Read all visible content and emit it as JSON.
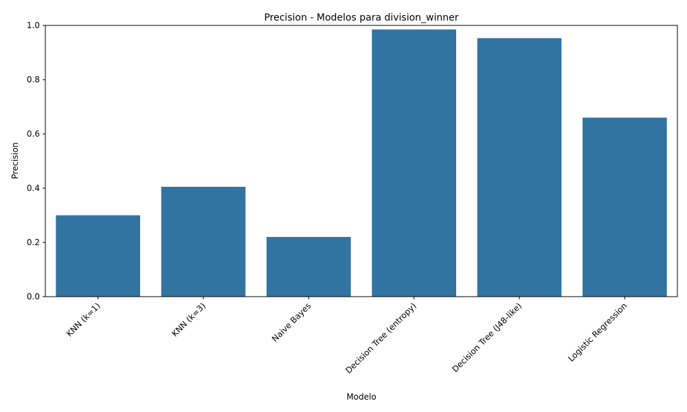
{
  "chart_data": {
    "type": "bar",
    "title": "Precision - Modelos para division_winner",
    "xlabel": "Modelo",
    "ylabel": "Precision",
    "categories": [
      "KNN (k=1)",
      "KNN (k=3)",
      "Naive Bayes",
      "Decision Tree (entropy)",
      "Decision Tree (J48-like)",
      "Logistic Regression"
    ],
    "values": [
      0.3,
      0.405,
      0.22,
      0.985,
      0.953,
      0.66
    ],
    "ylim": [
      0,
      1.0
    ],
    "yticks": [
      "0.0",
      "0.2",
      "0.4",
      "0.6",
      "0.8",
      "1.0"
    ],
    "grid": false,
    "bar_color": "#3274a1"
  }
}
